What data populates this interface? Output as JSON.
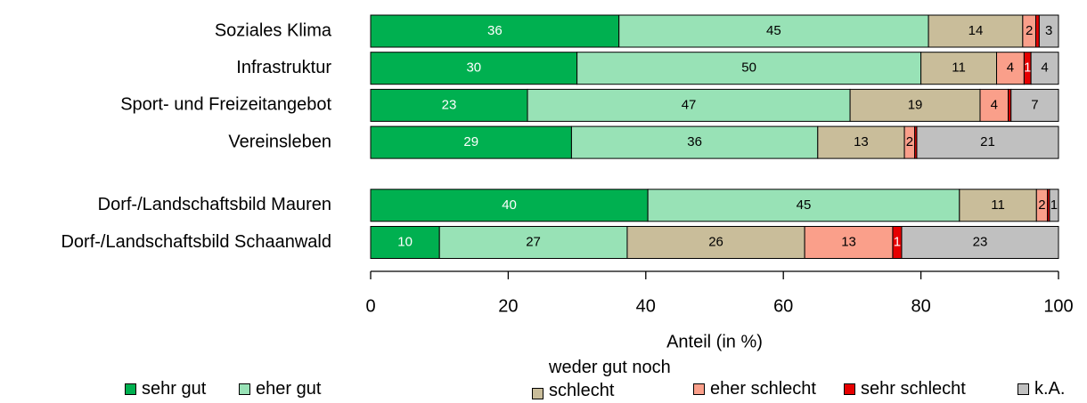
{
  "chart_data": {
    "type": "bar",
    "orientation": "horizontal",
    "stacked": true,
    "xlabel": "Anteil (in %)",
    "categories": [
      "Soziales Klima",
      "Infrastruktur",
      "Sport- und Freizeitangebot",
      "Vereinsleben",
      "Dorf-/Landschaftsbild Mauren",
      "Dorf-/Landschaftsbild Schaanwald"
    ],
    "xlim": [
      0,
      100
    ],
    "xticks": [
      0,
      20,
      40,
      60,
      80,
      100
    ],
    "series": [
      {
        "name": "sehr gut",
        "color": "#00b050",
        "label_color": "#ffffff",
        "values": [
          36.1,
          30,
          22.8,
          29.2,
          40.3,
          10
        ],
        "value_labels": [
          "36",
          "30",
          "23",
          "29",
          "40",
          "10"
        ]
      },
      {
        "name": "eher gut",
        "color": "#98e2b6",
        "label_color": "#000000",
        "values": [
          45,
          50,
          46.9,
          35.8,
          45.3,
          27.3
        ],
        "value_labels": [
          "45",
          "50",
          "47",
          "36",
          "45",
          "27"
        ]
      },
      {
        "name": "weder gut noch schlecht",
        "color": "#c9bd9a",
        "label_color": "#000000",
        "values": [
          13.7,
          11,
          18.9,
          12.6,
          11.2,
          25.8
        ],
        "value_labels": [
          "14",
          "11",
          "19",
          "13",
          "11",
          "26"
        ]
      },
      {
        "name": "eher schlecht",
        "color": "#fa9f8a",
        "label_color": "#000000",
        "values": [
          1.9,
          4,
          4.1,
          1.5,
          1.6,
          12.8
        ],
        "value_labels": [
          "2",
          "4",
          "4",
          "2",
          "2",
          "13"
        ]
      },
      {
        "name": "sehr schlecht",
        "color": "#e60000",
        "label_color": "#ffffff",
        "values": [
          0.5,
          1,
          0.4,
          0.3,
          0.3,
          1.3
        ],
        "value_labels": [
          null,
          "1",
          null,
          null,
          null,
          "1"
        ]
      },
      {
        "name": "k.A.",
        "color": "#c0c0c0",
        "label_color": "#000000",
        "values": [
          2.8,
          4,
          6.9,
          20.6,
          1.3,
          22.8
        ],
        "value_labels": [
          "3",
          "4",
          "7",
          "21",
          "1",
          "23"
        ]
      }
    ]
  }
}
